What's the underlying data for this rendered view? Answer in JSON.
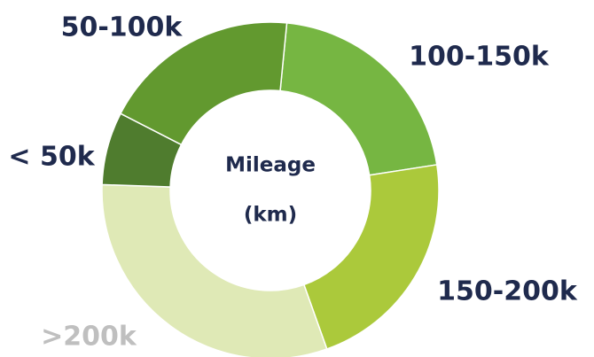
{
  "chart_data": {
    "type": "donut",
    "center_text": [
      "Mileage",
      "(km)"
    ],
    "categories": [
      "100-150k",
      "150-200k",
      ">200k",
      "< 50k",
      "50-100k"
    ],
    "values": [
      21,
      22,
      31,
      7,
      19
    ],
    "colors": [
      "#76b642",
      "#abc93b",
      "#dfe9b6",
      "#4f7c2e",
      "#62992f"
    ],
    "label_colors": [
      "#1f2a4d",
      "#1f2a4d",
      "#bfbfbf",
      "#1f2a4d",
      "#1f2a4d"
    ]
  }
}
